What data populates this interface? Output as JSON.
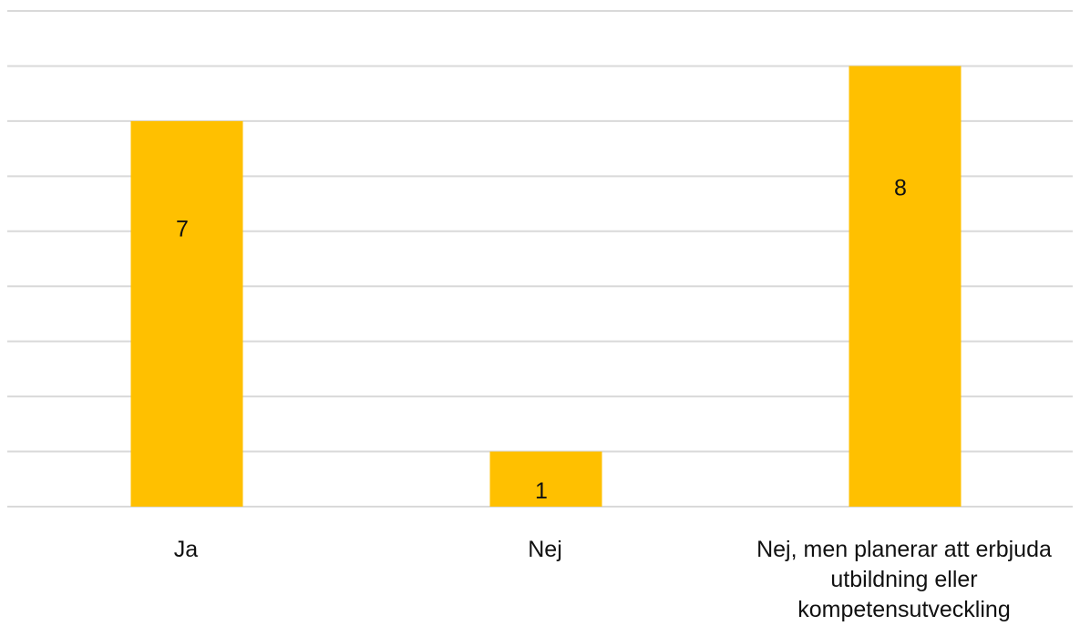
{
  "chart_data": {
    "type": "bar",
    "categories": [
      "Ja",
      "Nej",
      "Nej, men planerar att erbjuda utbildning eller kompetensutveckling"
    ],
    "category_label_lines": [
      [
        "Ja"
      ],
      [
        "Nej"
      ],
      [
        "Nej, men planerar att erbjuda",
        "utbildning eller",
        "kompetensutveckling"
      ]
    ],
    "values": [
      7,
      1,
      8
    ],
    "data_labels": [
      "7",
      "1",
      "8"
    ],
    "ylim": [
      0,
      9
    ],
    "grid_step": 1,
    "gridlines": true,
    "legend": "none",
    "bar_color": "#FFC000",
    "grid_color": "#D9D9D9"
  }
}
